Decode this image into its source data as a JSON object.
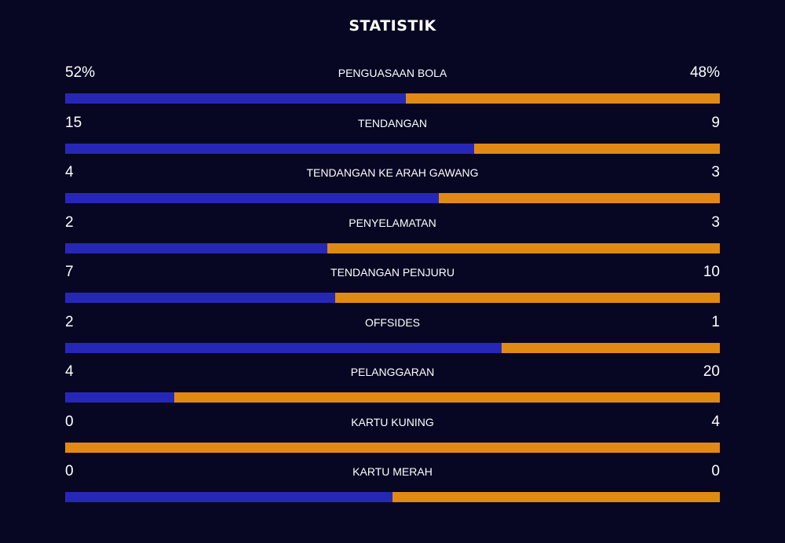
{
  "title": "STATISTIK",
  "colors": {
    "background": "#070723",
    "home": "#2727b7",
    "away": "#e08a14",
    "text": "#ffffff"
  },
  "stats": [
    {
      "label": "PENGUASAAN BOLA",
      "home": "52%",
      "away": "48%",
      "home_share": 0.52
    },
    {
      "label": "TENDANGAN",
      "home": "15",
      "away": "9",
      "home_share": 0.625
    },
    {
      "label": "TENDANGAN KE ARAH GAWANG",
      "home": "4",
      "away": "3",
      "home_share": 0.571
    },
    {
      "label": "PENYELAMATAN",
      "home": "2",
      "away": "3",
      "home_share": 0.4
    },
    {
      "label": "TENDANGAN PENJURU",
      "home": "7",
      "away": "10",
      "home_share": 0.412
    },
    {
      "label": "OFFSIDES",
      "home": "2",
      "away": "1",
      "home_share": 0.667
    },
    {
      "label": "PELANGGARAN",
      "home": "4",
      "away": "20",
      "home_share": 0.167
    },
    {
      "label": "KARTU KUNING",
      "home": "0",
      "away": "4",
      "home_share": 0.0
    },
    {
      "label": "KARTU MERAH",
      "home": "0",
      "away": "0",
      "home_share": 0.5
    }
  ]
}
